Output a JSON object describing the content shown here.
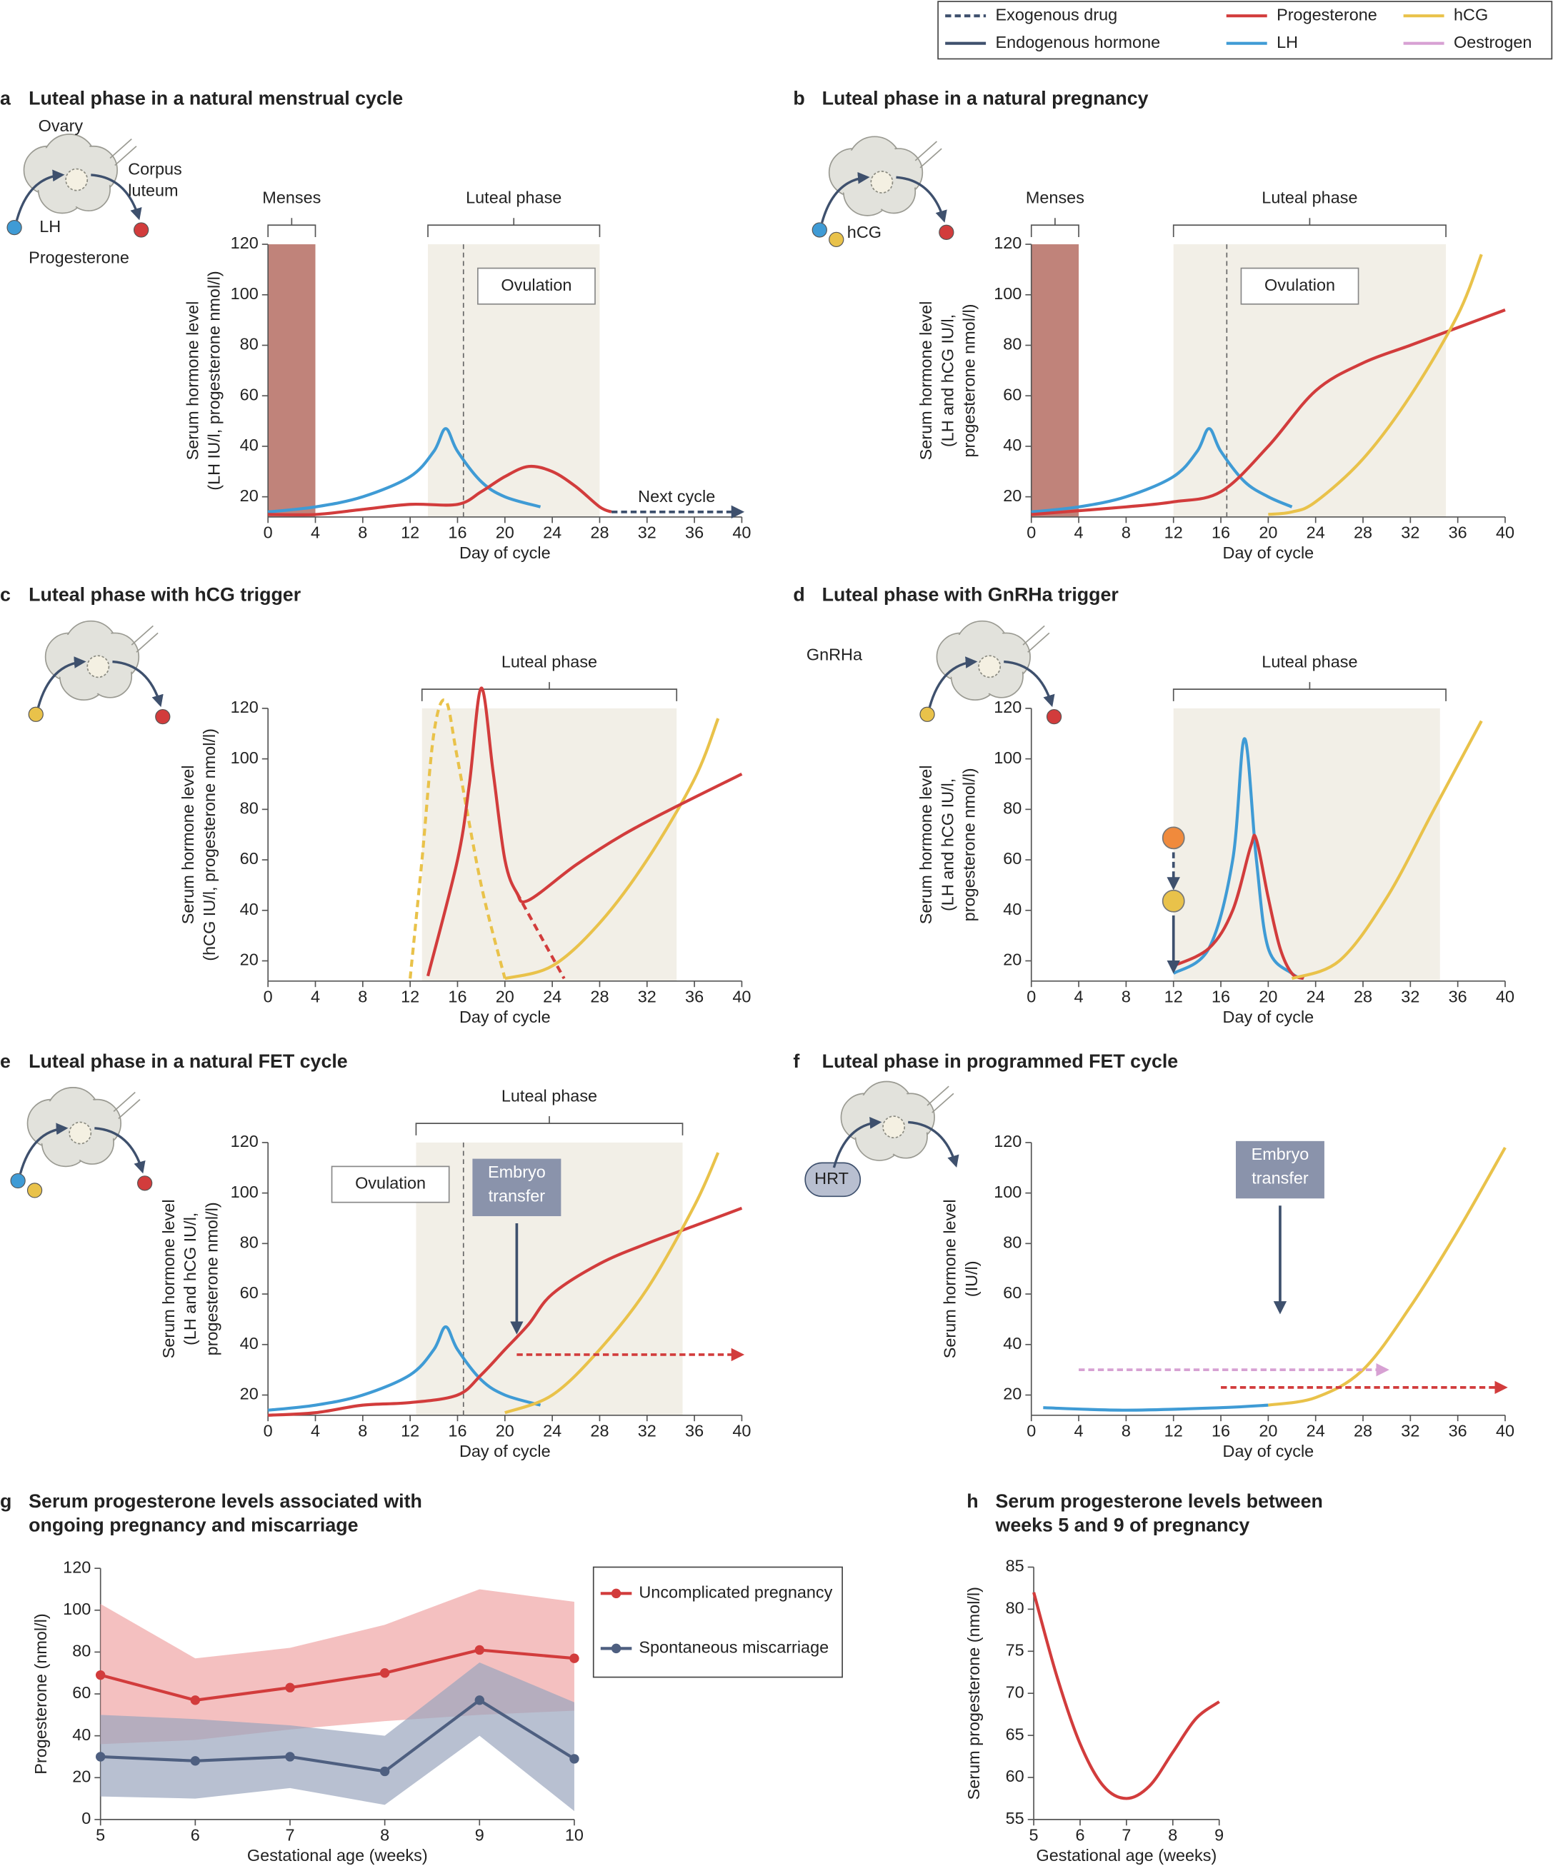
{
  "legend": {
    "items": [
      {
        "label": "Exogenous drug",
        "color": "#3e506d",
        "dash": true
      },
      {
        "label": "Endogenous hormone",
        "color": "#3e506d",
        "dash": false
      },
      {
        "label": "Progesterone",
        "color": "#d23c3c",
        "dash": false
      },
      {
        "label": "LH",
        "color": "#3f9bd5",
        "dash": false
      },
      {
        "label": "hCG",
        "color": "#e9c24a",
        "dash": false
      },
      {
        "label": "Oestrogen",
        "color": "#d7a1d3",
        "dash": false
      }
    ]
  },
  "chart_data": [
    {
      "type": "line",
      "letter": "a",
      "title": "Luteal phase in a natural menstrual cycle",
      "xlabel": "Day of cycle",
      "ylabel": [
        "Serum hormone level",
        "(LH IU/l, progesterone nmol/l)"
      ],
      "xlim": [
        0,
        40
      ],
      "ylim": [
        12,
        120
      ],
      "xticks": [
        0,
        4,
        8,
        12,
        16,
        20,
        24,
        28,
        32,
        36,
        40
      ],
      "yticks": [
        20,
        40,
        60,
        80,
        100,
        120
      ],
      "icon_labels": [
        "Ovary",
        "Corpus",
        "luteum",
        "LH",
        "Progesterone"
      ],
      "regions": [
        {
          "x": [
            0,
            4
          ],
          "color": "#c0837a"
        },
        {
          "x": [
            13.5,
            28
          ],
          "color": "#f2efe7"
        }
      ],
      "brackets": [
        {
          "label": "Menses",
          "x": [
            0,
            4
          ]
        },
        {
          "label": "Luteal phase",
          "x": [
            13.5,
            28
          ]
        }
      ],
      "ovulation": {
        "label": "Ovulation",
        "x": 16.5
      },
      "arrows": [
        {
          "label": "Next cycle",
          "x": [
            29,
            40
          ],
          "y": [
            14,
            14
          ],
          "color": "#3e506d",
          "dash": true
        }
      ],
      "series": [
        {
          "color": "#3f9bd5",
          "dash": false,
          "x": [
            0,
            4,
            8,
            12,
            14,
            15,
            16,
            18,
            20,
            23
          ],
          "values": [
            14,
            16,
            20,
            28,
            38,
            47,
            38,
            26,
            20,
            16
          ]
        },
        {
          "color": "#d23c3c",
          "dash": false,
          "x": [
            0,
            4,
            8,
            12,
            16,
            18,
            20,
            22,
            24,
            26,
            28,
            29
          ],
          "values": [
            13,
            13,
            15,
            17,
            17,
            22,
            28,
            32,
            30,
            24,
            16,
            14
          ]
        }
      ]
    },
    {
      "type": "line",
      "letter": "b",
      "title": "Luteal phase in a natural pregnancy",
      "xlabel": "Day of cycle",
      "ylabel": [
        "Serum hormone level",
        "(LH and hCG IU/l,",
        "progesterone nmol/l)"
      ],
      "xlim": [
        0,
        40
      ],
      "ylim": [
        12,
        120
      ],
      "xticks": [
        0,
        4,
        8,
        12,
        16,
        20,
        24,
        28,
        32,
        36,
        40
      ],
      "yticks": [
        20,
        40,
        60,
        80,
        100,
        120
      ],
      "icon_labels": [
        "hCG"
      ],
      "regions": [
        {
          "x": [
            0,
            4
          ],
          "color": "#c0837a"
        },
        {
          "x": [
            12,
            35
          ],
          "color": "#f2efe7"
        }
      ],
      "brackets": [
        {
          "label": "Menses",
          "x": [
            0,
            4
          ]
        },
        {
          "label": "Luteal phase",
          "x": [
            12,
            35
          ]
        }
      ],
      "ovulation": {
        "label": "Ovulation",
        "x": 16.5
      },
      "series": [
        {
          "color": "#3f9bd5",
          "dash": false,
          "x": [
            0,
            4,
            8,
            12,
            14,
            15,
            16,
            18,
            20,
            22
          ],
          "values": [
            14,
            16,
            20,
            28,
            38,
            47,
            38,
            26,
            20,
            16
          ]
        },
        {
          "color": "#d23c3c",
          "dash": false,
          "x": [
            0,
            8,
            12,
            16,
            20,
            24,
            28,
            32,
            36,
            40
          ],
          "values": [
            13,
            16,
            18,
            22,
            40,
            62,
            73,
            80,
            87,
            94
          ]
        },
        {
          "color": "#e9c24a",
          "dash": false,
          "x": [
            20,
            22,
            24,
            28,
            32,
            36,
            38
          ],
          "values": [
            13,
            14,
            18,
            35,
            60,
            92,
            116
          ]
        }
      ]
    },
    {
      "type": "line",
      "letter": "c",
      "title": "Luteal phase with hCG trigger",
      "xlabel": "Day of cycle",
      "ylabel": [
        "Serum hormone level",
        "(hCG IU/l, progesterone nmol/l)"
      ],
      "xlim": [
        0,
        40
      ],
      "ylim": [
        12,
        120
      ],
      "xticks": [
        0,
        4,
        8,
        12,
        16,
        20,
        24,
        28,
        32,
        36,
        40
      ],
      "yticks": [
        20,
        40,
        60,
        80,
        100,
        120
      ],
      "regions": [
        {
          "x": [
            13,
            34.5
          ],
          "color": "#f2efe7"
        }
      ],
      "brackets": [
        {
          "label": "Luteal phase",
          "x": [
            13,
            34.5
          ]
        }
      ],
      "series": [
        {
          "color": "#e9c24a",
          "dash": true,
          "x": [
            12,
            13,
            14,
            15,
            16,
            18,
            20
          ],
          "values": [
            13,
            60,
            110,
            123,
            100,
            50,
            13
          ]
        },
        {
          "color": "#e9c24a",
          "dash": false,
          "x": [
            20,
            24,
            28,
            32,
            36,
            38
          ],
          "values": [
            13,
            18,
            35,
            60,
            92,
            116
          ]
        },
        {
          "color": "#d23c3c",
          "dash": false,
          "x": [
            13.5,
            16,
            17,
            18,
            19,
            20,
            21,
            22,
            26,
            30,
            34,
            40
          ],
          "values": [
            14,
            60,
            90,
            128,
            95,
            60,
            47,
            44,
            58,
            70,
            80,
            94
          ]
        },
        {
          "color": "#d23c3c",
          "dash": true,
          "x": [
            21,
            23,
            25
          ],
          "values": [
            47,
            30,
            13
          ]
        }
      ]
    },
    {
      "type": "line",
      "letter": "d",
      "title": "Luteal phase with GnRHa trigger",
      "xlabel": "Day of cycle",
      "ylabel": [
        "Serum hormone level",
        "(LH and hCG IU/l,",
        "progesterone nmol/l)"
      ],
      "xlim": [
        0,
        40
      ],
      "ylim": [
        12,
        120
      ],
      "xticks": [
        0,
        4,
        8,
        12,
        16,
        20,
        24,
        28,
        32,
        36,
        40
      ],
      "yticks": [
        20,
        40,
        60,
        80,
        100,
        120
      ],
      "icon_labels": [
        "GnRHa"
      ],
      "regions": [
        {
          "x": [
            12,
            34.5
          ],
          "color": "#f2efe7"
        }
      ],
      "brackets": [
        {
          "label": "Luteal phase",
          "x": [
            12,
            35
          ]
        }
      ],
      "arrows": [
        {
          "x": [
            12,
            12
          ],
          "y": [
            63,
            49
          ],
          "color": "#3e506d",
          "dash": true,
          "dot": "#f08a3c"
        },
        {
          "x": [
            12,
            12
          ],
          "y": [
            38,
            16
          ],
          "color": "#3e506d",
          "dash": false,
          "dot": "#e9c24a"
        }
      ],
      "series": [
        {
          "color": "#3f9bd5",
          "dash": false,
          "x": [
            12,
            15,
            17,
            18,
            19,
            20,
            22,
            23
          ],
          "values": [
            15,
            25,
            60,
            108,
            60,
            25,
            15,
            13
          ]
        },
        {
          "color": "#d23c3c",
          "dash": false,
          "x": [
            12,
            15,
            17,
            18.5,
            19,
            20,
            21,
            22,
            23
          ],
          "values": [
            18,
            25,
            40,
            65,
            68,
            45,
            25,
            15,
            13
          ]
        },
        {
          "color": "#e9c24a",
          "dash": false,
          "x": [
            22,
            26,
            30,
            34,
            38
          ],
          "values": [
            13,
            20,
            45,
            80,
            115
          ]
        }
      ]
    },
    {
      "type": "line",
      "letter": "e",
      "title": "Luteal phase in a natural FET cycle",
      "xlabel": "Day of cycle",
      "ylabel": [
        "Serum hormone level",
        "(LH and hCG IU/l,",
        "progesterone nmol/l)"
      ],
      "xlim": [
        0,
        40
      ],
      "ylim": [
        12,
        120
      ],
      "xticks": [
        0,
        4,
        8,
        12,
        16,
        20,
        24,
        28,
        32,
        36,
        40
      ],
      "yticks": [
        20,
        40,
        60,
        80,
        100,
        120
      ],
      "regions": [
        {
          "x": [
            12.5,
            35
          ],
          "color": "#f2efe7"
        }
      ],
      "brackets": [
        {
          "label": "Luteal phase",
          "x": [
            12.5,
            35
          ]
        }
      ],
      "ovulation": {
        "label": "Ovulation",
        "x": 16.5,
        "left": true
      },
      "arrows": [
        {
          "label": [
            "Embryo",
            "transfer"
          ],
          "x": [
            21,
            21
          ],
          "y": [
            88,
            45
          ],
          "color": "#3e506d",
          "dash": false
        },
        {
          "x": [
            21,
            40
          ],
          "y": [
            36,
            36
          ],
          "color": "#d23c3c",
          "dash": true
        }
      ],
      "series": [
        {
          "color": "#3f9bd5",
          "dash": false,
          "x": [
            0,
            4,
            8,
            12,
            14,
            15,
            16,
            18,
            20,
            23
          ],
          "values": [
            14,
            16,
            20,
            28,
            38,
            47,
            38,
            26,
            20,
            16
          ]
        },
        {
          "color": "#d23c3c",
          "dash": false,
          "x": [
            0,
            4,
            8,
            12,
            16,
            18,
            20,
            22,
            24,
            28,
            32,
            36,
            40
          ],
          "values": [
            12,
            13,
            16,
            17,
            20,
            28,
            38,
            48,
            60,
            72,
            80,
            87,
            94
          ]
        },
        {
          "color": "#e9c24a",
          "dash": false,
          "x": [
            20,
            24,
            28,
            32,
            36,
            38
          ],
          "values": [
            13,
            20,
            38,
            62,
            95,
            116
          ]
        }
      ]
    },
    {
      "type": "line",
      "letter": "f",
      "title": "Luteal phase in programmed FET cycle",
      "xlabel": "Day of cycle",
      "ylabel": [
        "Serum hormone level",
        "(IU/l)"
      ],
      "xlim": [
        0,
        40
      ],
      "ylim": [
        12,
        120
      ],
      "xticks": [
        0,
        4,
        8,
        12,
        16,
        20,
        24,
        28,
        32,
        36,
        40
      ],
      "yticks": [
        20,
        40,
        60,
        80,
        100,
        120
      ],
      "icon_labels": [
        "HRT"
      ],
      "arrows": [
        {
          "label": [
            "Embryo",
            "transfer"
          ],
          "x": [
            21,
            21
          ],
          "y": [
            95,
            53
          ],
          "color": "#3e506d",
          "dash": false
        },
        {
          "x": [
            4,
            30
          ],
          "y": [
            30,
            30
          ],
          "color": "#d7a1d3",
          "dash": true
        },
        {
          "x": [
            16,
            40
          ],
          "y": [
            23,
            23
          ],
          "color": "#d23c3c",
          "dash": true
        }
      ],
      "series": [
        {
          "color": "#3f9bd5",
          "dash": false,
          "x": [
            1,
            8,
            16,
            20
          ],
          "values": [
            15,
            14,
            15,
            16
          ]
        },
        {
          "color": "#e9c24a",
          "dash": false,
          "x": [
            20,
            24,
            28,
            32,
            36,
            40
          ],
          "values": [
            16,
            19,
            30,
            55,
            85,
            118
          ]
        }
      ]
    },
    {
      "type": "band",
      "letter": "g",
      "title": [
        "Serum progesterone levels associated with",
        "ongoing pregnancy and miscarriage"
      ],
      "xlabel": "Gestational age (weeks)",
      "ylabel": [
        "Progesterone (nmol/l)"
      ],
      "xlim": [
        5,
        10
      ],
      "ylim": [
        0,
        120
      ],
      "xticks": [
        5,
        6,
        7,
        8,
        9,
        10
      ],
      "yticks": [
        0,
        20,
        40,
        60,
        80,
        100,
        120
      ],
      "series": [
        {
          "name": "Uncomplicated pregnancy",
          "color": "#d23c3c",
          "band_color": "#f0a5a5",
          "x": [
            5,
            6,
            7,
            8,
            9,
            10
          ],
          "values": [
            69,
            57,
            63,
            70,
            81,
            77
          ],
          "lower": [
            36,
            38,
            43,
            47,
            50,
            52
          ],
          "upper": [
            103,
            77,
            82,
            93,
            110,
            104
          ]
        },
        {
          "name": "Spontaneous miscarriage",
          "color": "#4e5f80",
          "band_color": "#9aa5be",
          "x": [
            5,
            6,
            7,
            8,
            9,
            10
          ],
          "values": [
            30,
            28,
            30,
            23,
            57,
            29
          ],
          "lower": [
            11,
            10,
            15,
            7,
            40,
            4
          ],
          "upper": [
            50,
            48,
            45,
            40,
            75,
            56
          ]
        }
      ]
    },
    {
      "type": "line",
      "letter": "h",
      "title": [
        "Serum progesterone levels between",
        "weeks 5 and 9 of pregnancy"
      ],
      "xlabel": "Gestational age (weeks)",
      "ylabel": [
        "Serum progesterone (nmol/l)"
      ],
      "xlim": [
        5,
        9
      ],
      "ylim": [
        55,
        85
      ],
      "xticks": [
        5,
        6,
        7,
        8,
        9
      ],
      "yticks": [
        55,
        60,
        65,
        70,
        75,
        80,
        85
      ],
      "series": [
        {
          "color": "#d23c3c",
          "dash": false,
          "x": [
            5,
            5.5,
            6,
            6.5,
            7,
            7.5,
            8,
            8.5,
            9
          ],
          "values": [
            82,
            72,
            64,
            59,
            57.5,
            59,
            63,
            67,
            69
          ]
        }
      ]
    }
  ]
}
